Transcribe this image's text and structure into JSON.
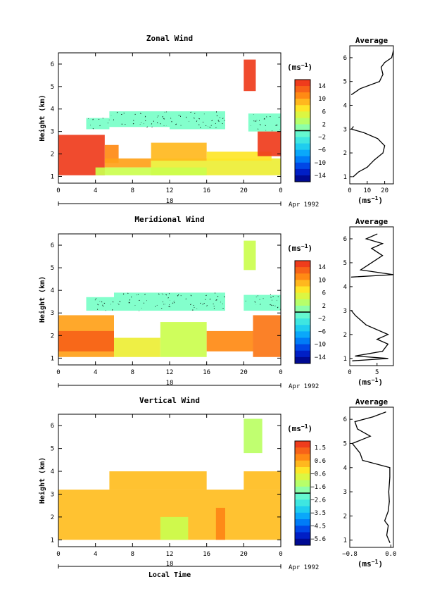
{
  "chart_data": [
    {
      "type": "heatmap",
      "title": "Zonal Wind",
      "ylabel": "Height (km)",
      "xlabel": "",
      "xlim": [
        0,
        24
      ],
      "ylim": [
        0.7,
        6.5
      ],
      "xticks": [
        "0",
        "4",
        "8",
        "12",
        "16",
        "20",
        "0"
      ],
      "yticks": [
        "1",
        "2",
        "3",
        "4",
        "5",
        "6"
      ],
      "date_label": "18",
      "month_label": "Apr 1992",
      "colorbar": {
        "unit": "(ms",
        "unit_exp": "−1",
        "unit_close": ")",
        "ticks": [
          "14",
          "10",
          "6",
          "2",
          "−2",
          "−6",
          "−10",
          "−14"
        ],
        "vmin": -16,
        "vmax": 16
      },
      "regions": [
        {
          "x": [
            0,
            5
          ],
          "y": [
            1.05,
            2.85
          ],
          "value": 15
        },
        {
          "x": [
            5,
            6.5
          ],
          "y": [
            1.6,
            2.4
          ],
          "value": 11
        },
        {
          "x": [
            5,
            10
          ],
          "y": [
            1.4,
            1.8
          ],
          "value": 10
        },
        {
          "x": [
            10,
            24
          ],
          "y": [
            1.05,
            1.8
          ],
          "value": 6
        },
        {
          "x": [
            10,
            16
          ],
          "y": [
            1.7,
            2.5
          ],
          "value": 9
        },
        {
          "x": [
            16,
            23
          ],
          "y": [
            1.7,
            2.1
          ],
          "value": 7
        },
        {
          "x": [
            4,
            16
          ],
          "y": [
            1.05,
            1.4
          ],
          "value": 4
        },
        {
          "x": [
            3,
            5.5
          ],
          "y": [
            3.1,
            3.6
          ],
          "value": 0
        },
        {
          "x": [
            5.5,
            12
          ],
          "y": [
            3.2,
            3.9
          ],
          "value": 0
        },
        {
          "x": [
            12,
            18
          ],
          "y": [
            3.1,
            3.9
          ],
          "value": 0
        },
        {
          "x": [
            20.5,
            24
          ],
          "y": [
            3.0,
            3.8
          ],
          "value": 0
        },
        {
          "x": [
            20,
            21.3
          ],
          "y": [
            4.8,
            6.2
          ],
          "value": 15
        },
        {
          "x": [
            21.5,
            24
          ],
          "y": [
            1.9,
            3.0
          ],
          "value": 15
        }
      ],
      "profile": {
        "title": "Average",
        "xlabel": "(ms",
        "xlabel_exp": "−1",
        "xlabel_close": ")",
        "xlim": [
          0,
          25
        ],
        "xticks": [
          "0",
          "10",
          "20"
        ],
        "yticks": [
          "1",
          "2",
          "3",
          "4",
          "5",
          "6"
        ],
        "points": [
          {
            "x": 2,
            "y": 1.0
          },
          {
            "x": 5,
            "y": 1.2
          },
          {
            "x": 10,
            "y": 1.4
          },
          {
            "x": 14,
            "y": 1.7
          },
          {
            "x": 19,
            "y": 2.0
          },
          {
            "x": 20,
            "y": 2.3
          },
          {
            "x": 16,
            "y": 2.6
          },
          {
            "x": 8,
            "y": 2.85
          },
          {
            "x": 1,
            "y": 3.0
          },
          {
            "x": 2,
            "y": 3.1
          },
          {
            "x": 1,
            "y": 4.45
          },
          {
            "x": 6,
            "y": 4.7
          },
          {
            "x": 17,
            "y": 5.0
          },
          {
            "x": 19,
            "y": 5.3
          },
          {
            "x": 18,
            "y": 5.6
          },
          {
            "x": 20,
            "y": 5.8
          },
          {
            "x": 24,
            "y": 6.0
          },
          {
            "x": 25,
            "y": 6.3
          }
        ]
      }
    },
    {
      "type": "heatmap",
      "title": "Meridional Wind",
      "ylabel": "Height (km)",
      "xlabel": "",
      "xlim": [
        0,
        24
      ],
      "ylim": [
        0.7,
        6.5
      ],
      "xticks": [
        "0",
        "4",
        "8",
        "12",
        "16",
        "20",
        "0"
      ],
      "yticks": [
        "1",
        "2",
        "3",
        "4",
        "5",
        "6"
      ],
      "date_label": "18",
      "month_label": "Apr 1992",
      "colorbar": {
        "unit": "(ms",
        "unit_exp": "−1",
        "unit_close": ")",
        "ticks": [
          "14",
          "10",
          "6",
          "2",
          "−2",
          "−6",
          "−10",
          "−14"
        ],
        "vmin": -16,
        "vmax": 16
      },
      "regions": [
        {
          "x": [
            0,
            6
          ],
          "y": [
            1.05,
            2.9
          ],
          "value": 10
        },
        {
          "x": [
            0,
            6
          ],
          "y": [
            1.3,
            2.2
          ],
          "value": 13
        },
        {
          "x": [
            6,
            11
          ],
          "y": [
            1.05,
            1.9
          ],
          "value": 6
        },
        {
          "x": [
            11,
            16
          ],
          "y": [
            1.05,
            2.6
          ],
          "value": 4
        },
        {
          "x": [
            16,
            21
          ],
          "y": [
            1.3,
            2.2
          ],
          "value": 11
        },
        {
          "x": [
            21,
            24
          ],
          "y": [
            1.05,
            2.9
          ],
          "value": 12
        },
        {
          "x": [
            3,
            6
          ],
          "y": [
            3.1,
            3.7
          ],
          "value": 0
        },
        {
          "x": [
            6,
            12
          ],
          "y": [
            3.1,
            3.9
          ],
          "value": 0
        },
        {
          "x": [
            12,
            18
          ],
          "y": [
            3.1,
            3.9
          ],
          "value": 0
        },
        {
          "x": [
            20,
            24
          ],
          "y": [
            3.1,
            3.8
          ],
          "value": 0
        },
        {
          "x": [
            20,
            21.3
          ],
          "y": [
            4.9,
            6.2
          ],
          "value": 4
        }
      ],
      "profile": {
        "title": "Average",
        "xlabel": "(ms",
        "xlabel_exp": "−1",
        "xlabel_close": ")",
        "xlim": [
          0,
          8
        ],
        "xticks": [
          "0",
          "5"
        ],
        "yticks": [
          "1",
          "2",
          "3",
          "4",
          "5",
          "6"
        ],
        "points": [
          {
            "x": 0.5,
            "y": 0.9
          },
          {
            "x": 7,
            "y": 1.0
          },
          {
            "x": 1,
            "y": 1.1
          },
          {
            "x": 6,
            "y": 1.3
          },
          {
            "x": 7,
            "y": 1.6
          },
          {
            "x": 5,
            "y": 1.8
          },
          {
            "x": 7,
            "y": 2.0
          },
          {
            "x": 3,
            "y": 2.4
          },
          {
            "x": 1,
            "y": 2.8
          },
          {
            "x": 0.3,
            "y": 3.0
          },
          {
            "x": 0.3,
            "y": 4.4
          },
          {
            "x": 8,
            "y": 4.5
          },
          {
            "x": 2,
            "y": 4.7
          },
          {
            "x": 4,
            "y": 5.0
          },
          {
            "x": 6,
            "y": 5.3
          },
          {
            "x": 4,
            "y": 5.6
          },
          {
            "x": 6,
            "y": 5.8
          },
          {
            "x": 3,
            "y": 6.0
          },
          {
            "x": 5,
            "y": 6.2
          }
        ]
      }
    },
    {
      "type": "heatmap",
      "title": "Vertical Wind",
      "ylabel": "Height (km)",
      "xlabel": "Local Time",
      "xlim": [
        0,
        24
      ],
      "ylim": [
        0.7,
        6.5
      ],
      "xticks": [
        "0",
        "4",
        "8",
        "12",
        "16",
        "20",
        "0"
      ],
      "yticks": [
        "1",
        "2",
        "3",
        "4",
        "5",
        "6"
      ],
      "date_label": "18",
      "month_label": "Apr 1992",
      "colorbar": {
        "unit": "(ms",
        "unit_exp": "−1",
        "unit_close": ")",
        "ticks": [
          "1.5",
          "0.6",
          "−0.6",
          "−1.6",
          "−2.6",
          "−3.5",
          "−4.5",
          "−5.6"
        ],
        "vmin": -6,
        "vmax": 2
      },
      "regions": [
        {
          "x": [
            0,
            24
          ],
          "y": [
            1.0,
            3.2
          ],
          "value": 0.2
        },
        {
          "x": [
            5.5,
            16
          ],
          "y": [
            3.2,
            4.0
          ],
          "value": 0.2
        },
        {
          "x": [
            20,
            24
          ],
          "y": [
            3.2,
            4.0
          ],
          "value": 0.2
        },
        {
          "x": [
            11,
            14
          ],
          "y": [
            1.0,
            2.0
          ],
          "value": -1.0
        },
        {
          "x": [
            17,
            18
          ],
          "y": [
            1.0,
            2.4
          ],
          "value": 0.8
        },
        {
          "x": [
            20,
            22
          ],
          "y": [
            4.8,
            6.3
          ],
          "value": -1.2
        }
      ],
      "profile": {
        "title": "Average",
        "xlabel": "(ms",
        "xlabel_exp": "−1",
        "xlabel_close": ")",
        "xlim": [
          -0.8,
          0.05
        ],
        "xticks": [
          "−0.8",
          "0.0"
        ],
        "yticks": [
          "1",
          "2",
          "3",
          "4",
          "5",
          "6"
        ],
        "points": [
          {
            "x": -0.02,
            "y": 0.9
          },
          {
            "x": -0.08,
            "y": 1.2
          },
          {
            "x": -0.05,
            "y": 1.6
          },
          {
            "x": -0.12,
            "y": 1.8
          },
          {
            "x": -0.05,
            "y": 2.2
          },
          {
            "x": -0.03,
            "y": 2.6
          },
          {
            "x": -0.04,
            "y": 3.0
          },
          {
            "x": -0.02,
            "y": 3.6
          },
          {
            "x": -0.02,
            "y": 4.0
          },
          {
            "x": -0.55,
            "y": 4.3
          },
          {
            "x": -0.6,
            "y": 4.6
          },
          {
            "x": -0.75,
            "y": 5.0
          },
          {
            "x": -0.4,
            "y": 5.3
          },
          {
            "x": -0.65,
            "y": 5.6
          },
          {
            "x": -0.7,
            "y": 5.9
          },
          {
            "x": -0.35,
            "y": 6.1
          },
          {
            "x": -0.1,
            "y": 6.3
          }
        ]
      }
    }
  ]
}
